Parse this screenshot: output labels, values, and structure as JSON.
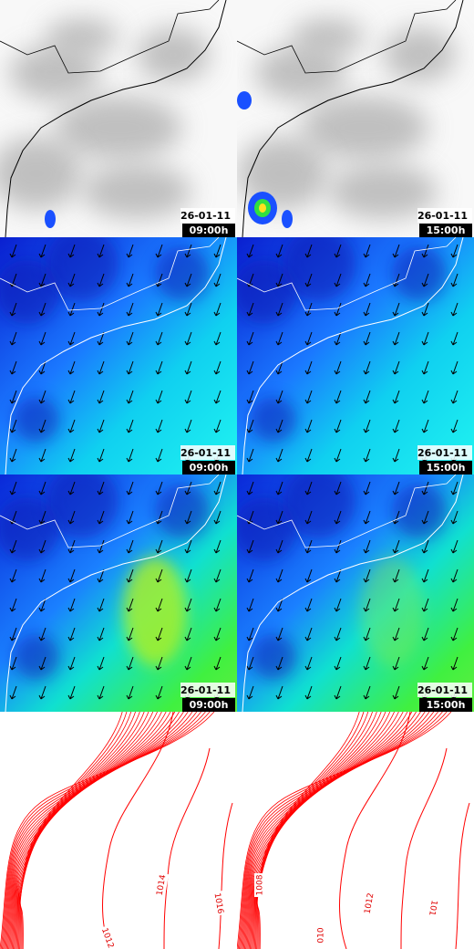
{
  "panels": [
    {
      "date": "26-01-11",
      "time": "09:00h"
    },
    {
      "date": "26-01-11",
      "time": "15:00h"
    },
    {
      "date": "26-01-11",
      "time": "09:00h"
    },
    {
      "date": "26-01-11",
      "time": "15:00h"
    },
    {
      "date": "26-01-11",
      "time": "09:00h"
    },
    {
      "date": "26-01-11",
      "time": "15:00h"
    }
  ],
  "contour_panels": [
    {
      "labels": [
        "1014",
        "1016",
        "1012"
      ]
    },
    {
      "labels": [
        "1008",
        "010",
        "1012",
        "101"
      ]
    }
  ]
}
